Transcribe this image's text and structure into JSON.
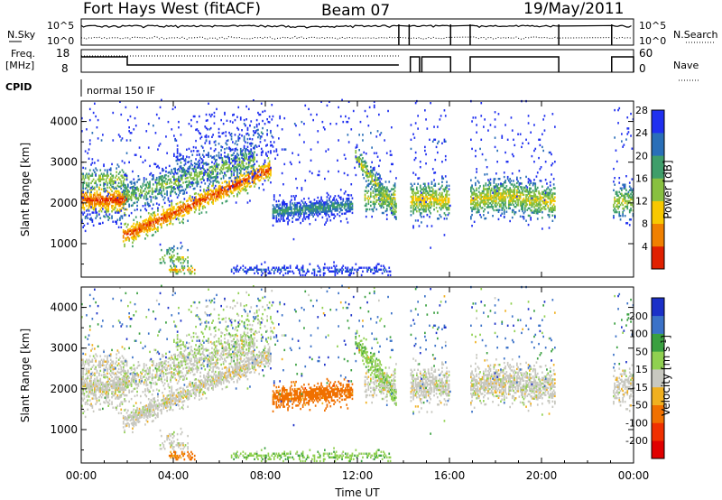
{
  "header": {
    "title": "Fort Hays West (fitACF)",
    "beam": "Beam 07",
    "date": "19/May/2011"
  },
  "top_panels": {
    "nsky_label": "N.Sky",
    "nsearch_label": "N.Search",
    "left_ticks": [
      "10^5",
      "10^0"
    ],
    "right_ticks": [
      "10^5",
      "10^0"
    ],
    "freq_label_1": "Freq.",
    "freq_label_2": "[MHz]",
    "freq_ticks": [
      "18",
      "8"
    ],
    "nave_label": "Nave",
    "nave_ticks": [
      "60",
      "0"
    ],
    "cpid_label": "CPID",
    "cpid_value": "normal 150 IF"
  },
  "chart_data": [
    {
      "type": "heatmap",
      "title": "",
      "ylabel": "Slant Range [km]",
      "xlabel": "",
      "yticks": [
        "1000",
        "2000",
        "3000",
        "4000"
      ],
      "ylim": [
        180,
        4500
      ],
      "colorbar_label": "Power [dB]",
      "colorbar_ticks": [
        "4",
        "8",
        "12",
        "16",
        "20",
        "24",
        "28"
      ],
      "colorbar_colors": [
        "#2030f0",
        "#2a6fb8",
        "#3f9e6a",
        "#88c040",
        "#f8c800",
        "#f08000",
        "#e02000"
      ]
    },
    {
      "type": "heatmap",
      "title": "",
      "ylabel": "Slant Range [km]",
      "xlabel": "Time UT",
      "yticks": [
        "1000",
        "2000",
        "3000",
        "4000"
      ],
      "xticks": [
        "00:00",
        "04:00",
        "08:00",
        "12:00",
        "16:00",
        "20:00",
        "00:00"
      ],
      "ylim": [
        180,
        4500
      ],
      "colorbar_label": "Velocity [m s^-1]",
      "colorbar_ticks": [
        "200",
        "100",
        "50",
        "15",
        "-15",
        "-50",
        "-100",
        "-200"
      ],
      "colorbar_colors": [
        "#1b30c8",
        "#3b72c8",
        "#3aa040",
        "#90d050",
        "#c8c8c0",
        "#f0b020",
        "#f07000",
        "#f03000",
        "#e00000"
      ]
    }
  ]
}
